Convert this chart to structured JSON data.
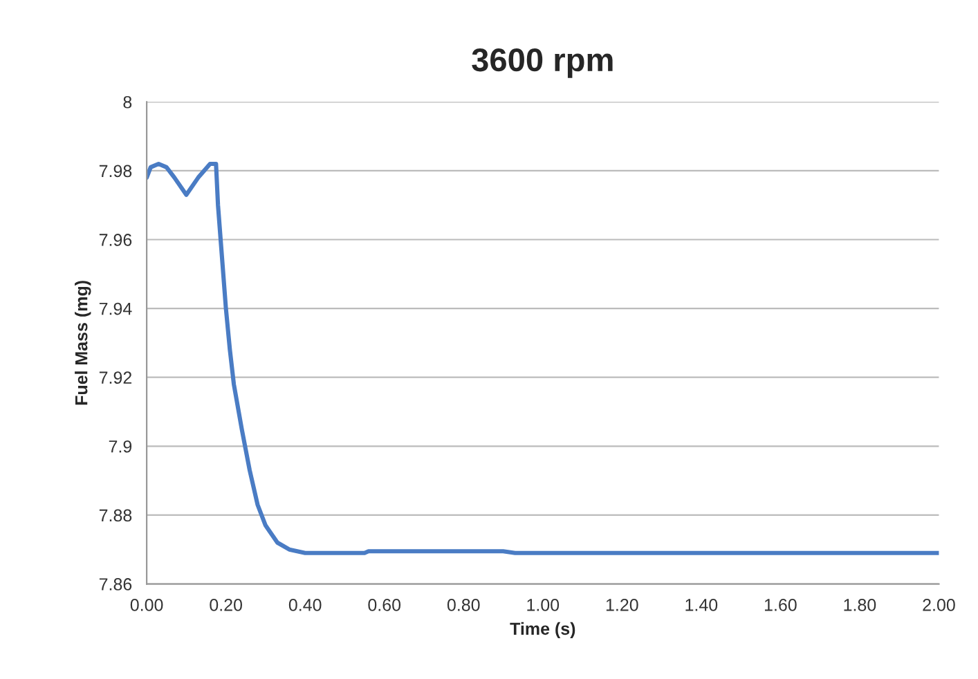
{
  "chart_data": {
    "type": "line",
    "title": "3600 rpm",
    "xlabel": "Time (s)",
    "ylabel": "Fuel Mass (mg)",
    "series": [
      {
        "color": "#4a7cc4",
        "x": [
          0,
          0.01,
          0.03,
          0.05,
          0.07,
          0.1,
          0.13,
          0.16,
          0.175,
          0.18,
          0.19,
          0.2,
          0.21,
          0.22,
          0.24,
          0.26,
          0.28,
          0.3,
          0.33,
          0.36,
          0.4,
          0.55,
          0.56,
          0.9,
          0.93,
          2.0
        ],
        "values": [
          7.978,
          7.981,
          7.982,
          7.981,
          7.978,
          7.973,
          7.978,
          7.982,
          7.982,
          7.97,
          7.955,
          7.94,
          7.928,
          7.918,
          7.905,
          7.893,
          7.883,
          7.877,
          7.872,
          7.87,
          7.869,
          7.869,
          7.8695,
          7.8695,
          7.869,
          7.869
        ]
      }
    ],
    "xlim": [
      0,
      2
    ],
    "xticks": [
      {
        "value": 0,
        "label": "0.00"
      },
      {
        "value": 0.2,
        "label": "0.20"
      },
      {
        "value": 0.4,
        "label": "0.40"
      },
      {
        "value": 0.6,
        "label": "0.60"
      },
      {
        "value": 0.8,
        "label": "0.80"
      },
      {
        "value": 1.0,
        "label": "1.00"
      },
      {
        "value": 1.2,
        "label": "1.20"
      },
      {
        "value": 1.4,
        "label": "1.40"
      },
      {
        "value": 1.6,
        "label": "1.60"
      },
      {
        "value": 1.8,
        "label": "1.80"
      },
      {
        "value": 2.0,
        "label": "2.00"
      }
    ],
    "ylim": [
      7.86,
      8
    ],
    "yticks": [
      7.86,
      7.88,
      7.9,
      7.92,
      7.94,
      7.96,
      7.98,
      8
    ],
    "grid": "y",
    "marker": "none",
    "line_style": "solid"
  }
}
